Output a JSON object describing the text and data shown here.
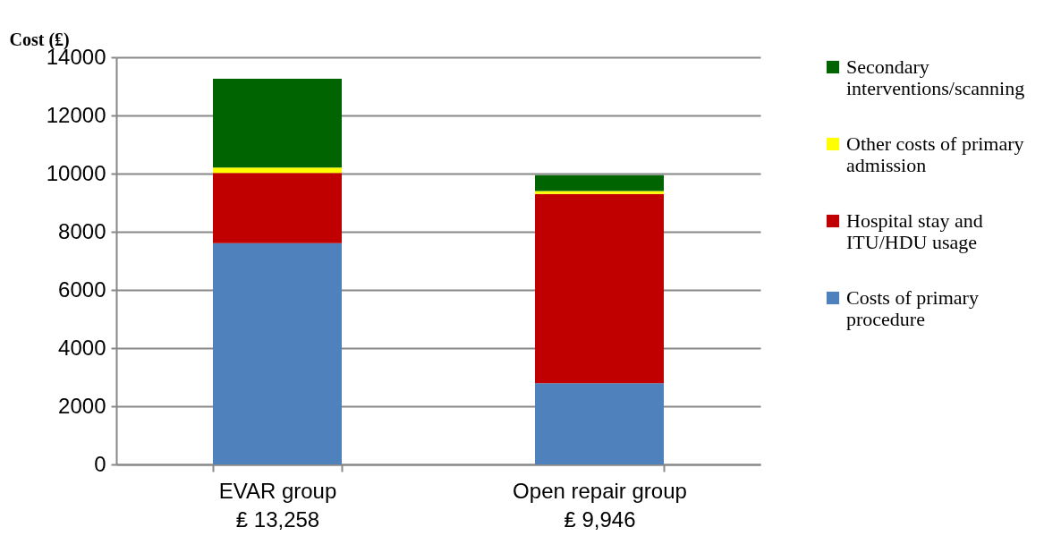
{
  "chart_data": {
    "type": "bar",
    "stacked": true,
    "ylabel": "Cost (₤)",
    "categories": [
      "EVAR group\n₤ 13,258",
      "Open repair group\n₤ 9,946"
    ],
    "series": [
      {
        "name": "Costs of primary procedure",
        "color": "#4f81bd",
        "values": [
          7610,
          2790
        ]
      },
      {
        "name": "Hospital stay and ITU/HDU usage",
        "color": "#c00000",
        "values": [
          2410,
          6510
        ]
      },
      {
        "name": "Other costs of primary admission",
        "color": "#ffff00",
        "values": [
          190,
          100
        ]
      },
      {
        "name": "Secondary interventions/scanning",
        "color": "#006400",
        "values": [
          3050,
          550
        ]
      }
    ],
    "ylim": [
      0,
      14000
    ],
    "yticks": [
      0,
      2000,
      4000,
      6000,
      8000,
      10000,
      12000,
      14000
    ],
    "grid": "y",
    "legend": "right"
  }
}
